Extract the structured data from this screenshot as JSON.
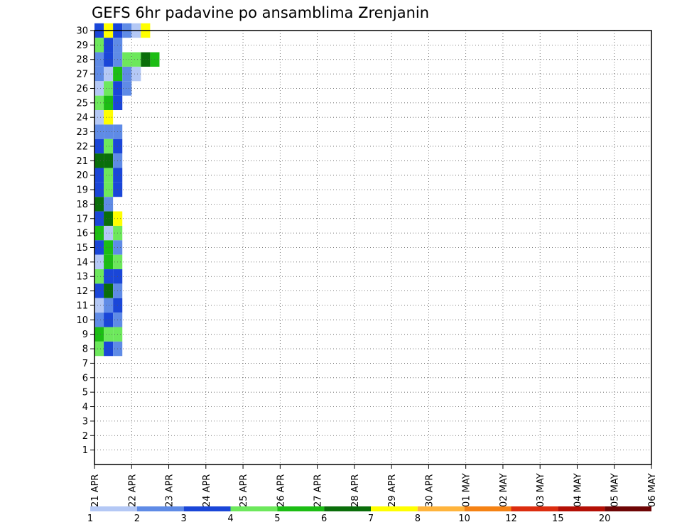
{
  "chart_data": {
    "type": "heatmap",
    "title": "GEFS 6hr padavine po ansamblima Zrenjanin",
    "xlabel": "",
    "ylabel": "",
    "x_ticks": [
      "21 APR",
      "22 APR",
      "23 APR",
      "24 APR",
      "25 APR",
      "26 APR",
      "27 APR",
      "28 APR",
      "29 APR",
      "30 APR",
      "01 MAY",
      "02 MAY",
      "03 MAY",
      "04 MAY",
      "05 MAY",
      "06 MAY"
    ],
    "y_ticks": [
      "1",
      "2",
      "3",
      "4",
      "5",
      "6",
      "7",
      "8",
      "9",
      "10",
      "11",
      "12",
      "13",
      "14",
      "15",
      "16",
      "17",
      "18",
      "19",
      "20",
      "21",
      "22",
      "23",
      "24",
      "25",
      "26",
      "27",
      "28",
      "29",
      "30"
    ],
    "xlim": [
      "21 APR",
      "06 MAY"
    ],
    "ylim": [
      0,
      30
    ],
    "grid": "dotted",
    "colorbar": {
      "labels": [
        "1",
        "2",
        "3",
        "4",
        "5",
        "6",
        "7",
        "8",
        "10",
        "12",
        "15",
        "20"
      ],
      "colors": [
        "#b4c8f5",
        "#5f8be6",
        "#1a46d8",
        "#6de85c",
        "#1cbd14",
        "#0a6e0a",
        "#ffff00",
        "#ffb43c",
        "#f58214",
        "#dc2d0f",
        "#b40f05",
        "#6e0505"
      ]
    },
    "cells": [
      [
        0,
        30,
        3
      ],
      [
        1,
        30,
        7
      ],
      [
        2,
        30,
        3
      ],
      [
        3,
        30,
        2
      ],
      [
        4,
        30,
        1
      ],
      [
        5,
        30,
        7
      ],
      [
        0,
        29,
        4
      ],
      [
        1,
        29,
        3
      ],
      [
        2,
        29,
        2
      ],
      [
        0,
        28,
        2
      ],
      [
        1,
        28,
        3
      ],
      [
        2,
        28,
        2
      ],
      [
        3,
        28,
        4
      ],
      [
        4,
        28,
        4
      ],
      [
        5,
        28,
        6
      ],
      [
        6,
        28,
        5
      ],
      [
        0,
        27,
        2
      ],
      [
        1,
        27,
        1
      ],
      [
        2,
        27,
        5
      ],
      [
        3,
        27,
        2
      ],
      [
        4,
        27,
        1
      ],
      [
        0,
        26,
        1
      ],
      [
        1,
        26,
        4
      ],
      [
        2,
        26,
        3
      ],
      [
        3,
        26,
        2
      ],
      [
        0,
        25,
        4
      ],
      [
        1,
        25,
        5
      ],
      [
        2,
        25,
        3
      ],
      [
        0,
        24,
        1
      ],
      [
        1,
        24,
        7
      ],
      [
        0,
        23,
        2
      ],
      [
        1,
        23,
        2
      ],
      [
        2,
        23,
        2
      ],
      [
        0,
        22,
        3
      ],
      [
        1,
        22,
        4
      ],
      [
        2,
        22,
        3
      ],
      [
        0,
        21,
        6
      ],
      [
        1,
        21,
        6
      ],
      [
        2,
        21,
        2
      ],
      [
        0,
        20,
        3
      ],
      [
        1,
        20,
        4
      ],
      [
        2,
        20,
        3
      ],
      [
        0,
        19,
        3
      ],
      [
        1,
        19,
        4
      ],
      [
        2,
        19,
        3
      ],
      [
        0,
        18,
        6
      ],
      [
        1,
        18,
        2
      ],
      [
        0,
        17,
        3
      ],
      [
        1,
        17,
        6
      ],
      [
        2,
        17,
        7
      ],
      [
        0,
        16,
        5
      ],
      [
        1,
        16,
        1
      ],
      [
        2,
        16,
        4
      ],
      [
        0,
        15,
        3
      ],
      [
        1,
        15,
        5
      ],
      [
        2,
        15,
        2
      ],
      [
        0,
        14,
        1
      ],
      [
        1,
        14,
        5
      ],
      [
        2,
        14,
        4
      ],
      [
        0,
        13,
        4
      ],
      [
        1,
        13,
        3
      ],
      [
        2,
        13,
        3
      ],
      [
        0,
        12,
        3
      ],
      [
        1,
        12,
        6
      ],
      [
        2,
        12,
        2
      ],
      [
        0,
        11,
        1
      ],
      [
        1,
        11,
        2
      ],
      [
        2,
        11,
        3
      ],
      [
        0,
        10,
        2
      ],
      [
        1,
        10,
        3
      ],
      [
        2,
        10,
        2
      ],
      [
        0,
        9,
        5
      ],
      [
        1,
        9,
        4
      ],
      [
        2,
        9,
        4
      ],
      [
        0,
        8,
        4
      ],
      [
        1,
        8,
        3
      ],
      [
        2,
        8,
        2
      ]
    ]
  }
}
